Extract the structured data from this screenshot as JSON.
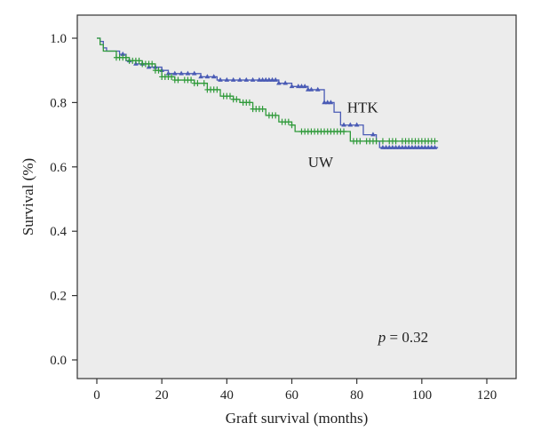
{
  "chart_data": {
    "type": "line",
    "title": "",
    "xlabel": "Graft survival (months)",
    "ylabel": "Survival (%)",
    "xlim": [
      -3,
      126
    ],
    "ylim": [
      -0.05,
      1.05
    ],
    "x_ticks": [
      0,
      20,
      40,
      60,
      80,
      100,
      120
    ],
    "x_tick_labels": [
      "0",
      "20",
      "40",
      "60",
      "80",
      "100",
      "120"
    ],
    "y_ticks": [
      0.0,
      0.2,
      0.4,
      0.6,
      0.8,
      1.0
    ],
    "y_tick_labels": [
      "0.0",
      "0.2",
      "0.4",
      "0.6",
      "0.8",
      "1.0"
    ],
    "grid": false,
    "background": "#ececec",
    "annotation": {
      "prefix": "p",
      "text": " = 0.32",
      "x": 102,
      "y": 0.055
    },
    "series": [
      {
        "name": "HTK",
        "color": "#4a5bb5",
        "marker": "triangle",
        "label_pos": {
          "x": 77,
          "y": 0.77
        },
        "steps": [
          [
            0,
            1.0
          ],
          [
            1,
            0.99
          ],
          [
            2,
            0.97
          ],
          [
            3,
            0.96
          ],
          [
            7,
            0.95
          ],
          [
            9,
            0.93
          ],
          [
            12,
            0.92
          ],
          [
            16,
            0.91
          ],
          [
            20,
            0.9
          ],
          [
            22,
            0.89
          ],
          [
            32,
            0.88
          ],
          [
            37,
            0.87
          ],
          [
            56,
            0.86
          ],
          [
            60,
            0.85
          ],
          [
            65,
            0.84
          ],
          [
            70,
            0.8
          ],
          [
            73,
            0.77
          ],
          [
            75,
            0.73
          ],
          [
            80,
            0.73
          ],
          [
            82,
            0.7
          ],
          [
            86,
            0.68
          ],
          [
            87,
            0.66
          ],
          [
            105,
            0.66
          ]
        ],
        "censor_x": [
          8,
          10,
          12,
          14,
          16,
          18,
          20,
          22,
          24,
          26,
          28,
          30,
          32,
          34,
          36,
          38,
          40,
          42,
          44,
          46,
          48,
          50,
          51,
          52,
          53,
          54,
          55,
          56,
          58,
          60,
          62,
          63,
          64,
          65,
          66,
          68,
          70,
          71,
          72,
          76,
          78,
          80,
          85,
          88,
          89,
          90,
          91,
          92,
          93,
          94,
          95,
          96,
          97,
          98,
          99,
          100,
          101,
          102,
          103,
          104
        ]
      },
      {
        "name": "UW",
        "color": "#2f9a3a",
        "marker": "plus",
        "label_pos": {
          "x": 65,
          "y": 0.6
        },
        "steps": [
          [
            0,
            1.0
          ],
          [
            1,
            0.98
          ],
          [
            2,
            0.96
          ],
          [
            6,
            0.94
          ],
          [
            10,
            0.93
          ],
          [
            14,
            0.92
          ],
          [
            18,
            0.9
          ],
          [
            20,
            0.88
          ],
          [
            24,
            0.87
          ],
          [
            30,
            0.86
          ],
          [
            34,
            0.84
          ],
          [
            38,
            0.82
          ],
          [
            42,
            0.81
          ],
          [
            44,
            0.8
          ],
          [
            48,
            0.78
          ],
          [
            52,
            0.76
          ],
          [
            56,
            0.74
          ],
          [
            60,
            0.73
          ],
          [
            61,
            0.71
          ],
          [
            77,
            0.71
          ],
          [
            78,
            0.68
          ],
          [
            105,
            0.68
          ]
        ],
        "censor_x": [
          6,
          7,
          8,
          9,
          10,
          11,
          12,
          13,
          14,
          15,
          16,
          17,
          18,
          19,
          20,
          21,
          22,
          23,
          24,
          25,
          27,
          28,
          29,
          30,
          31,
          33,
          34,
          35,
          36,
          37,
          39,
          40,
          41,
          42,
          43,
          45,
          46,
          47,
          48,
          49,
          50,
          51,
          53,
          54,
          55,
          57,
          58,
          59,
          60,
          63,
          64,
          65,
          66,
          67,
          68,
          69,
          70,
          71,
          72,
          73,
          74,
          75,
          76,
          79,
          80,
          81,
          83,
          84,
          85,
          86,
          88,
          90,
          91,
          92,
          94,
          95,
          96,
          97,
          98,
          99,
          100,
          101,
          102,
          103,
          104
        ]
      }
    ]
  }
}
